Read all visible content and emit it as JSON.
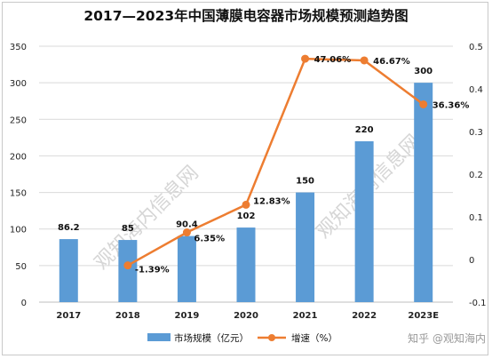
{
  "title": "2017—2023年中国薄膜电容器市场规模预测趋势图",
  "watermark_text": "知乎 @观知海内",
  "background_watermark": "观知海内信息网",
  "colors": {
    "bar": "#5b9bd5",
    "line": "#ed7d31",
    "grid": "#d9d9d9"
  },
  "chart_data": {
    "type": "bar",
    "categories": [
      "2017",
      "2018",
      "2019",
      "2020",
      "2021",
      "2022",
      "2023E"
    ],
    "series": [
      {
        "name": "市场规模（亿元）",
        "type": "bar",
        "axis": "left",
        "values": [
          86.2,
          85,
          90.4,
          102,
          150,
          220,
          300
        ],
        "labels": [
          "86.2",
          "85",
          "90.4",
          "102",
          "150",
          "220",
          "300"
        ]
      },
      {
        "name": "增速（%）",
        "type": "line",
        "axis": "right",
        "values": [
          null,
          -0.0139,
          0.0635,
          0.1283,
          0.4706,
          0.4667,
          0.3636
        ],
        "labels": [
          "",
          "-1.39%",
          "6.35%",
          "12.83%",
          "47.06%",
          "46.67%",
          "36.36%"
        ]
      }
    ],
    "left_axis": {
      "ylim": [
        0,
        350
      ],
      "ticks": [
        0,
        50,
        100,
        150,
        200,
        250,
        300,
        350
      ]
    },
    "right_axis": {
      "ylim": [
        -0.1,
        0.5
      ],
      "ticks": [
        -0.1,
        0,
        0.1,
        0.2,
        0.3,
        0.4,
        0.5
      ]
    },
    "grid": true,
    "legend": "bottom"
  }
}
